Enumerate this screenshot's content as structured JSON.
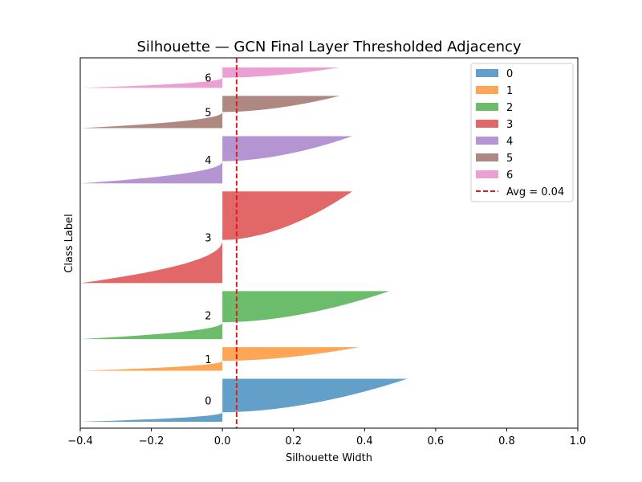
{
  "chart_data": {
    "type": "silhouette",
    "title": "Silhouette — GCN Final Layer Thresholded Adjacency",
    "xlabel": "Silhouette Width",
    "ylabel": "Class Label",
    "xlim": [
      -0.4,
      1.0
    ],
    "xticks": [
      "−0.4",
      "−0.2",
      "0.0",
      "0.2",
      "0.4",
      "0.6",
      "0.8",
      "1.0"
    ],
    "xtick_values": [
      -0.4,
      -0.2,
      0.0,
      0.2,
      0.4,
      0.6,
      0.8,
      1.0
    ],
    "grid": false,
    "legend_position": "top-right",
    "average": {
      "value": 0.04,
      "label": "Avg = 0.04",
      "color": "#e41a1c",
      "style": "dashed"
    },
    "clusters": [
      {
        "name": "0",
        "label": "0",
        "color": "#1f77b4",
        "size": 120,
        "min": -0.4,
        "max": 0.52,
        "neg_frac": 0.22
      },
      {
        "name": "1",
        "label": "1",
        "color": "#ff7f0e",
        "size": 66,
        "min": -0.4,
        "max": 0.385,
        "neg_frac": 0.42
      },
      {
        "name": "2",
        "label": "2",
        "color": "#2ca02c",
        "size": 134,
        "min": -0.4,
        "max": 0.47,
        "neg_frac": 0.35
      },
      {
        "name": "3",
        "label": "3",
        "color": "#d62728",
        "size": 256,
        "min": -0.4,
        "max": 0.365,
        "neg_frac": 0.47
      },
      {
        "name": "4",
        "label": "4",
        "color": "#9467bd",
        "size": 132,
        "min": -0.4,
        "max": 0.365,
        "neg_frac": 0.47
      },
      {
        "name": "5",
        "label": "5",
        "color": "#8c564b",
        "size": 90,
        "min": -0.4,
        "max": 0.33,
        "neg_frac": 0.5
      },
      {
        "name": "6",
        "label": "6",
        "color": "#e377c2",
        "size": 57,
        "min": -0.4,
        "max": 0.33,
        "neg_frac": 0.5
      }
    ]
  }
}
